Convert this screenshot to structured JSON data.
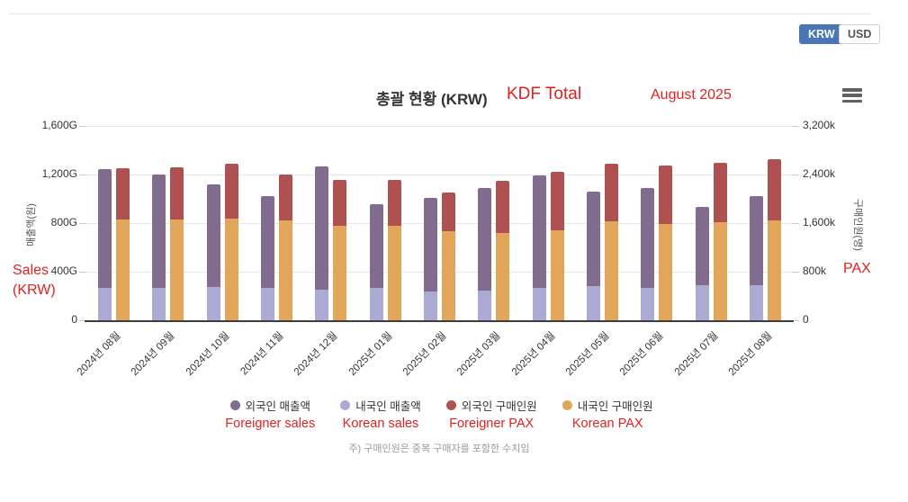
{
  "currency_toggle": {
    "options": [
      {
        "label": "KRW",
        "active": true
      },
      {
        "label": "USD",
        "active": false
      }
    ],
    "active_color": "#4a76b8"
  },
  "annotations": {
    "color": "#e12120",
    "title_label": "KDF Total",
    "period_label": "August 2025",
    "left_axis_label_line1": "Sales",
    "left_axis_label_line2": "(KRW)",
    "right_axis_label": "PAX",
    "series_labels": [
      "Foreigner sales",
      "Korean sales",
      "Foreigner PAX",
      "Korean PAX"
    ]
  },
  "chart_data": {
    "type": "bar",
    "stacked": true,
    "title": "총괄 현황 (KRW)",
    "categories": [
      "2024년 08월",
      "2024년 09월",
      "2024년 10월",
      "2024년 11월",
      "2024년 12월",
      "2025년 01월",
      "2025년 02월",
      "2025년 03월",
      "2025년 04월",
      "2025년 05월",
      "2025년 06월",
      "2025년 07월",
      "2025년 08월"
    ],
    "series": [
      {
        "name": "외국인 매출액",
        "stack": "sales",
        "stack_role": "top",
        "axis": "left",
        "color": "#816c90",
        "values": [
          975,
          930,
          845,
          755,
          1020,
          690,
          770,
          845,
          925,
          775,
          820,
          640,
          730
        ]
      },
      {
        "name": "내국인 매출액",
        "stack": "sales",
        "stack_role": "bottom",
        "axis": "left",
        "color": "#aaaad4",
        "values": [
          270,
          270,
          275,
          265,
          250,
          265,
          240,
          245,
          265,
          285,
          270,
          290,
          290
        ]
      },
      {
        "name": "외국인 구매인원",
        "stack": "pax",
        "stack_role": "top",
        "axis": "right",
        "color": "#ae5150",
        "values": [
          850,
          855,
          910,
          750,
          765,
          745,
          640,
          860,
          970,
          940,
          965,
          985,
          995
        ]
      },
      {
        "name": "내국인 구매인원",
        "stack": "pax",
        "stack_role": "bottom",
        "axis": "right",
        "color": "#e2a65a",
        "values": [
          1660,
          1665,
          1670,
          1650,
          1550,
          1560,
          1460,
          1430,
          1480,
          1635,
          1585,
          1615,
          1650
        ]
      }
    ],
    "left_axis": {
      "title": "매출액(원)",
      "unit": "G",
      "max": 1600,
      "tick_interval": 400,
      "tick_labels": [
        "0",
        "400G",
        "800G",
        "1,200G",
        "1,600G"
      ]
    },
    "right_axis": {
      "title": "구매인원(명)",
      "unit": "k",
      "max": 3200,
      "tick_interval": 800,
      "tick_labels": [
        "0",
        "800k",
        "1,600k",
        "2,400k",
        "3,200k"
      ]
    },
    "grid": "horizontal",
    "legend_position": "bottom",
    "note": "주) 구매인원은 중복 구매자를 포함한 수치임"
  }
}
